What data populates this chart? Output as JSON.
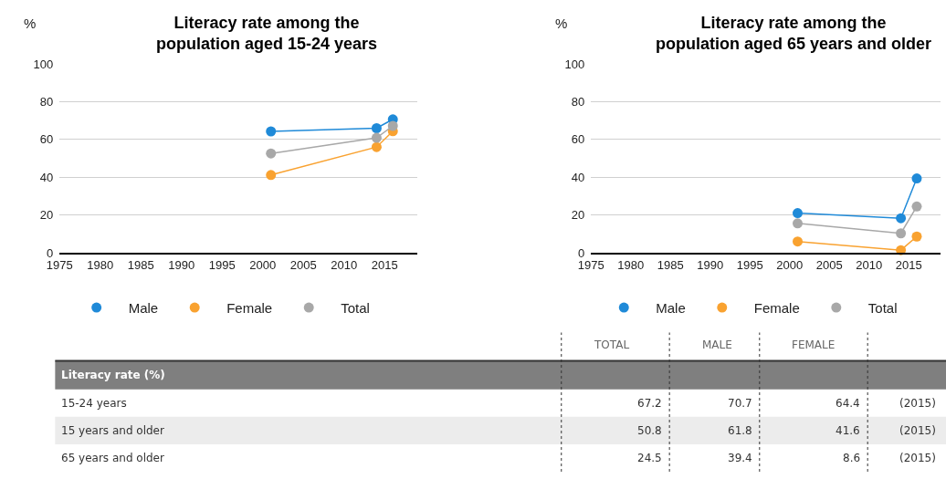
{
  "chart_data": [
    {
      "type": "line",
      "title": "Literacy rate among the\npopulation aged 15-24 years",
      "ylabel": "%",
      "xlim": [
        1975,
        2019
      ],
      "xticks": [
        1975,
        1980,
        1985,
        1990,
        1995,
        2000,
        2005,
        2010,
        2015
      ],
      "ylim": [
        0,
        100
      ],
      "yticks": [
        0,
        20,
        40,
        60,
        80,
        100
      ],
      "grid": "y",
      "legend": "bottom",
      "marker": "circle",
      "line_style": "solid",
      "x": [
        2001,
        2014,
        2016
      ],
      "series": [
        {
          "name": "Male",
          "color": "#1f8ad8",
          "values": [
            64.3,
            66,
            70.7
          ]
        },
        {
          "name": "Female",
          "color": "#f9a230",
          "values": [
            41.2,
            56,
            64.4
          ]
        },
        {
          "name": "Total",
          "color": "#a8a8a8",
          "values": [
            52.6,
            60.9,
            67.2
          ]
        }
      ]
    },
    {
      "type": "line",
      "title": "Literacy rate among the\npopulation aged 65 years and older",
      "ylabel": "%",
      "xlim": [
        1975,
        2019
      ],
      "xticks": [
        1975,
        1980,
        1985,
        1990,
        1995,
        2000,
        2005,
        2010,
        2015
      ],
      "ylim": [
        0,
        100
      ],
      "yticks": [
        0,
        20,
        40,
        60,
        80,
        100
      ],
      "grid": "y",
      "legend": "bottom",
      "marker": "circle",
      "line_style": "solid",
      "x": [
        2001,
        2014,
        2016
      ],
      "series": [
        {
          "name": "Male",
          "color": "#1f8ad8",
          "values": [
            21,
            18.3,
            39.4
          ]
        },
        {
          "name": "Female",
          "color": "#f9a230",
          "values": [
            6,
            1.4,
            8.6
          ]
        },
        {
          "name": "Total",
          "color": "#a8a8a8",
          "values": [
            15.6,
            10.3,
            24.5
          ]
        }
      ]
    },
    {
      "type": "other",
      "title": "Literacy rate (%)",
      "data_labels": true,
      "categories": [
        "15-24 years",
        "15 years and older",
        "65 years and older"
      ],
      "series": [
        {
          "name": "TOTAL",
          "values": [
            67.2,
            50.8,
            24.5
          ]
        },
        {
          "name": "MALE",
          "values": [
            70.7,
            61.8,
            39.4
          ]
        },
        {
          "name": "FEMALE",
          "values": [
            64.4,
            41.6,
            8.6
          ]
        },
        {
          "values": [
            null,
            null,
            null
          ],
          "value_labels": [
            "(2015)",
            "(2015)",
            "(2015)"
          ]
        }
      ]
    }
  ]
}
